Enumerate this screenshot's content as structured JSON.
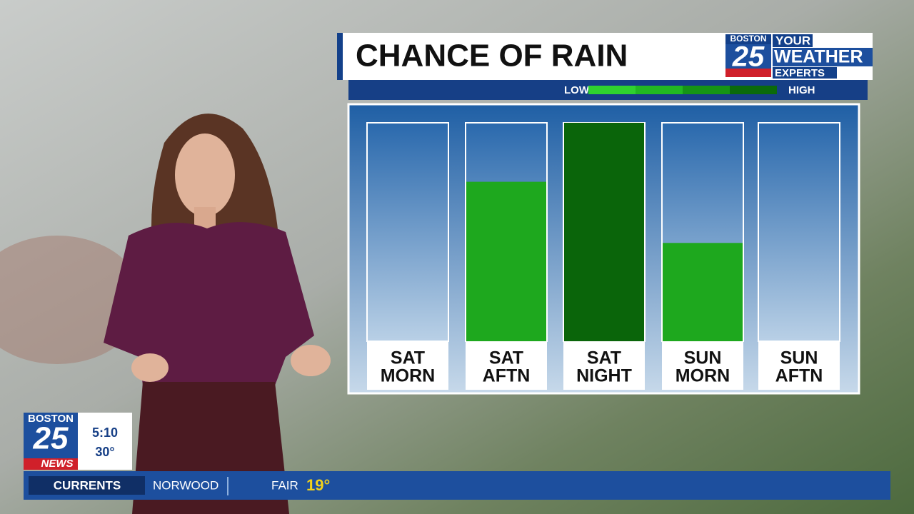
{
  "chart_data": {
    "type": "bar",
    "title": "CHANCE OF RAIN",
    "scale_labels": [
      "LOW",
      "HIGH"
    ],
    "categories": [
      [
        "SAT",
        "MORN"
      ],
      [
        "SAT",
        "AFTN"
      ],
      [
        "SAT",
        "NIGHT"
      ],
      [
        "SUN",
        "MORN"
      ],
      [
        "SUN",
        "AFTN"
      ]
    ],
    "values": [
      0,
      73,
      100,
      45,
      0
    ],
    "colors": [
      "#1ea81e",
      "#1ea81e",
      "#0a650a",
      "#1ea81e",
      "#1ea81e"
    ],
    "ylim": [
      0,
      100
    ]
  },
  "logo": {
    "city": "BOSTON",
    "number": "25",
    "tagline": [
      "YOUR",
      "WEATHER",
      "EXPERTS"
    ]
  },
  "clock": {
    "city": "BOSTON",
    "number": "25",
    "brand": "NEWS",
    "time": "5:10",
    "temperature": "30°"
  },
  "ticker": {
    "label": "CURRENTS",
    "location": "NORWOOD",
    "condition": "FAIR",
    "temperature": "19°"
  }
}
